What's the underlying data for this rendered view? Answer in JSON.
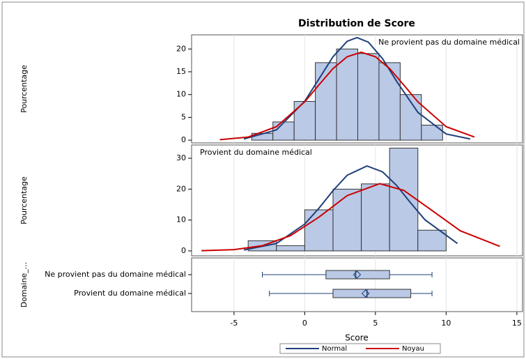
{
  "chart_data": {
    "type": "histogram",
    "title": "Distribution de Score",
    "xlabel": "Score",
    "xlim": [
      -8,
      15.4
    ],
    "xticks": [
      -5,
      0,
      5,
      10,
      15
    ],
    "grid": true,
    "bar_color": "#b9c9e6",
    "panels": [
      {
        "annotation": "Ne provient pas du domaine médical",
        "annotation_corner": "upper right",
        "ylabel": "Pourcentage",
        "ylim": [
          -0.6,
          23.1
        ],
        "yticks": [
          0,
          5,
          10,
          15,
          20
        ],
        "bins": [
          -3.75,
          -2.25,
          -0.75,
          0.75,
          2.25,
          3.75,
          5.25,
          6.75,
          8.25,
          9.75
        ],
        "values": [
          1.5,
          4,
          8.5,
          17,
          20,
          19,
          17,
          10,
          3.3
        ],
        "series": [
          {
            "name": "Normal",
            "color": "#1f3f7a",
            "x": [
              -4.3,
              -2,
              0,
              1,
              2,
              3,
              3.7,
              4.5,
              5.5,
              6.5,
              8,
              10,
              11.7
            ],
            "values": [
              0.25,
              2.25,
              8.55,
              13.4,
              18.3,
              21.7,
              22.5,
              21.5,
              17.9,
              12.9,
              6.1,
              1.36,
              0.25
            ]
          },
          {
            "name": "Noyau",
            "color": "#cc0000",
            "x": [
              -6,
              -4,
              -2,
              0,
              1,
              2,
              3,
              4,
              5,
              6,
              7,
              8,
              10,
              12
            ],
            "values": [
              0.1,
              0.69,
              2.96,
              8.4,
              12.1,
              15.7,
              18.3,
              19.3,
              18.3,
              15.7,
              12.1,
              8.4,
              2.96,
              0.69
            ]
          }
        ]
      },
      {
        "annotation": "Provient du domaine médical",
        "annotation_corner": "upper left",
        "ylabel": "Pourcentage",
        "ylim": [
          -1.6,
          34.3
        ],
        "yticks": [
          0,
          10,
          20,
          30
        ],
        "bins": [
          -4,
          -2,
          0,
          2,
          4,
          6,
          8,
          10
        ],
        "values": [
          3.3,
          1.7,
          13.3,
          20,
          21.7,
          33.3,
          6.7
        ],
        "series": [
          {
            "name": "Normal",
            "color": "#1f3f7a",
            "x": [
              -4.3,
              -2,
              0,
              1,
              2,
              3,
              4.4,
              5.5,
              6.5,
              7.5,
              8.5,
              10.8
            ],
            "values": [
              0.3,
              2.4,
              8.7,
              13.8,
              19.5,
              24.5,
              27.5,
              25.6,
              21.2,
              15.5,
              10.1,
              2.4
            ]
          },
          {
            "name": "Noyau",
            "color": "#cc0000",
            "x": [
              -7.3,
              -5,
              -3,
              -1,
              1,
              3,
              5.3,
              7,
              9,
              11,
              13.8
            ],
            "values": [
              0.06,
              0.42,
              1.67,
              4.95,
              10.9,
              17.9,
              21.8,
              19.6,
              13.1,
              6.5,
              1.46
            ]
          }
        ]
      }
    ],
    "boxplot": {
      "ylabel": "Domaine_...",
      "color": "#1f3f7a",
      "categories": [
        "Ne provient pas du domaine médical",
        "Provient du domaine médical"
      ],
      "min": [
        -3,
        -2.5
      ],
      "q1": [
        1.5,
        2
      ],
      "median": [
        3.6,
        4.4
      ],
      "q3": [
        6,
        7.5
      ],
      "max": [
        9,
        9
      ],
      "mean": [
        3.7,
        4.3
      ]
    }
  }
}
